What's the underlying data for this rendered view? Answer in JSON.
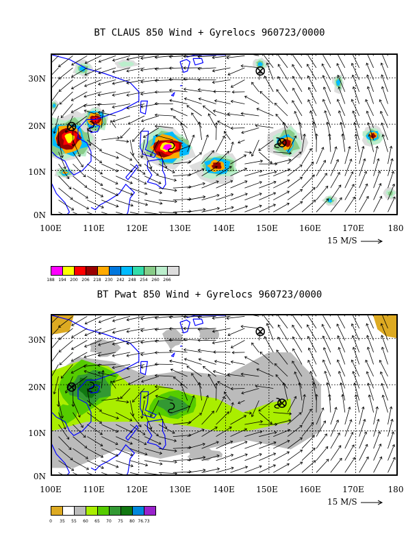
{
  "panels": [
    {
      "title": "BT CLAUS 850 Wind + Gyrelocs 960723/0000",
      "y_ticks": [
        "30N",
        "20N",
        "10N",
        "0N"
      ],
      "x_ticks": [
        "100E",
        "110E",
        "120E",
        "130E",
        "140E",
        "150E",
        "160E",
        "170E",
        "180"
      ],
      "vector_ref": "15 M/S",
      "colorbar_labels": [
        "188",
        "194",
        "200",
        "206",
        "218",
        "230",
        "242",
        "248",
        "254",
        "260",
        "266"
      ],
      "colorbar_colors": [
        "#ff00ff",
        "#ffff00",
        "#ff0000",
        "#990000",
        "#ffaa00",
        "#0077dd",
        "#00bbff",
        "#33ddaa",
        "#88cc88",
        "#bbeecc",
        "#dddddd"
      ]
    },
    {
      "title": "BT Pwat 850 Wind + Gyrelocs 960723/0000",
      "y_ticks": [
        "30N",
        "20N",
        "10N",
        "0N"
      ],
      "x_ticks": [
        "100E",
        "110E",
        "120E",
        "130E",
        "140E",
        "150E",
        "160E",
        "170E",
        "180"
      ],
      "vector_ref": "15 M/S",
      "colorbar_labels": [
        "0",
        "35",
        "55",
        "60",
        "65",
        "70",
        "75",
        "80",
        "76.73"
      ],
      "colorbar_colors": [
        "#ddaa22",
        "#ffffff",
        "#bbbbbb",
        "#aaee00",
        "#55cc00",
        "#339933",
        "#117711",
        "#0088dd",
        "#9922cc"
      ]
    }
  ],
  "map": {
    "lon_range": [
      100,
      180
    ],
    "lat_range": [
      0,
      35
    ],
    "coast_color": "#0000ff"
  },
  "gyre_locations": [
    {
      "lon": 104.5,
      "lat": 19.5,
      "marker": "circle-x"
    },
    {
      "lon": 148,
      "lat": 31.5,
      "marker": "circle-x"
    },
    {
      "lon": 153,
      "lat": 16,
      "marker": "circle-x"
    }
  ],
  "storm_symbols": [
    {
      "lon": 109,
      "lat": 19.5
    },
    {
      "lon": 127.5,
      "lat": 15
    },
    {
      "lon": 152,
      "lat": 16
    }
  ]
}
